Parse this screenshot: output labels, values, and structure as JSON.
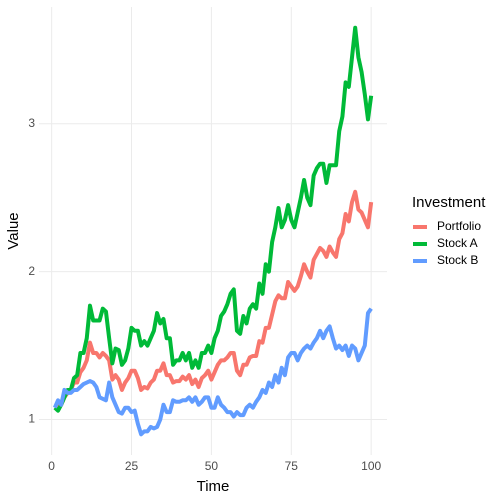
{
  "chart_data": {
    "type": "line",
    "x_label": "Time",
    "y_label": "Value",
    "legend_title": "Investment",
    "x": [
      1,
      2,
      3,
      4,
      5,
      6,
      7,
      8,
      9,
      10,
      11,
      12,
      13,
      14,
      15,
      16,
      17,
      18,
      19,
      20,
      21,
      22,
      23,
      24,
      25,
      26,
      27,
      28,
      29,
      30,
      31,
      32,
      33,
      34,
      35,
      36,
      37,
      38,
      39,
      40,
      41,
      42,
      43,
      44,
      45,
      46,
      47,
      48,
      49,
      50,
      51,
      52,
      53,
      54,
      55,
      56,
      57,
      58,
      59,
      60,
      61,
      62,
      63,
      64,
      65,
      66,
      67,
      68,
      69,
      70,
      71,
      72,
      73,
      74,
      75,
      76,
      77,
      78,
      79,
      80,
      81,
      82,
      83,
      84,
      85,
      86,
      87,
      88,
      89,
      90,
      91,
      92,
      93,
      94,
      95,
      96,
      97,
      98,
      99,
      100
    ],
    "series": [
      {
        "name": "Portfolio",
        "color": "#F8766D",
        "values": [
          1.08,
          1.1,
          1.1,
          1.15,
          1.18,
          1.2,
          1.25,
          1.25,
          1.32,
          1.35,
          1.4,
          1.52,
          1.45,
          1.45,
          1.42,
          1.45,
          1.43,
          1.4,
          1.27,
          1.3,
          1.27,
          1.2,
          1.25,
          1.28,
          1.33,
          1.33,
          1.28,
          1.2,
          1.22,
          1.21,
          1.25,
          1.27,
          1.33,
          1.33,
          1.38,
          1.3,
          1.3,
          1.25,
          1.26,
          1.26,
          1.29,
          1.27,
          1.3,
          1.24,
          1.27,
          1.22,
          1.28,
          1.3,
          1.33,
          1.27,
          1.32,
          1.37,
          1.4,
          1.4,
          1.42,
          1.45,
          1.45,
          1.33,
          1.3,
          1.37,
          1.37,
          1.42,
          1.43,
          1.43,
          1.53,
          1.52,
          1.62,
          1.62,
          1.71,
          1.8,
          1.84,
          1.82,
          1.82,
          1.93,
          1.9,
          1.87,
          1.9,
          1.97,
          2.05,
          2.0,
          1.96,
          2.08,
          2.12,
          2.16,
          2.14,
          2.1,
          2.17,
          2.13,
          2.1,
          2.22,
          2.26,
          2.39,
          2.34,
          2.47,
          2.54,
          2.42,
          2.4,
          2.35,
          2.3,
          2.47
        ]
      },
      {
        "name": "Stock A",
        "color": "#00BA38",
        "values": [
          1.08,
          1.06,
          1.1,
          1.15,
          1.2,
          1.2,
          1.28,
          1.3,
          1.45,
          1.45,
          1.55,
          1.77,
          1.67,
          1.67,
          1.67,
          1.75,
          1.73,
          1.55,
          1.38,
          1.48,
          1.47,
          1.37,
          1.4,
          1.48,
          1.62,
          1.6,
          1.6,
          1.5,
          1.53,
          1.5,
          1.55,
          1.6,
          1.72,
          1.65,
          1.68,
          1.55,
          1.55,
          1.37,
          1.4,
          1.4,
          1.45,
          1.4,
          1.45,
          1.35,
          1.4,
          1.35,
          1.45,
          1.45,
          1.5,
          1.45,
          1.55,
          1.6,
          1.7,
          1.73,
          1.78,
          1.85,
          1.88,
          1.6,
          1.58,
          1.7,
          1.65,
          1.75,
          1.78,
          1.75,
          1.92,
          1.85,
          2.05,
          2.0,
          2.2,
          2.3,
          2.43,
          2.3,
          2.35,
          2.45,
          2.35,
          2.3,
          2.4,
          2.5,
          2.62,
          2.5,
          2.45,
          2.65,
          2.7,
          2.73,
          2.73,
          2.6,
          2.72,
          2.72,
          2.72,
          2.95,
          3.05,
          3.28,
          3.25,
          3.45,
          3.65,
          3.45,
          3.35,
          3.2,
          3.03,
          3.19
        ]
      },
      {
        "name": "Stock B",
        "color": "#619CFF",
        "values": [
          1.08,
          1.13,
          1.1,
          1.2,
          1.18,
          1.18,
          1.2,
          1.2,
          1.22,
          1.24,
          1.25,
          1.26,
          1.25,
          1.22,
          1.15,
          1.14,
          1.13,
          1.25,
          1.15,
          1.1,
          1.05,
          1.04,
          1.08,
          1.08,
          1.05,
          1.06,
          0.97,
          0.9,
          0.92,
          0.92,
          0.95,
          0.94,
          0.95,
          1.0,
          1.1,
          1.05,
          1.05,
          1.13,
          1.12,
          1.12,
          1.13,
          1.13,
          1.15,
          1.12,
          1.15,
          1.1,
          1.12,
          1.15,
          1.15,
          1.08,
          1.08,
          1.15,
          1.1,
          1.08,
          1.05,
          1.05,
          1.02,
          1.05,
          1.03,
          1.03,
          1.08,
          1.1,
          1.08,
          1.12,
          1.15,
          1.2,
          1.18,
          1.25,
          1.22,
          1.3,
          1.25,
          1.35,
          1.3,
          1.42,
          1.45,
          1.45,
          1.4,
          1.45,
          1.48,
          1.5,
          1.48,
          1.52,
          1.55,
          1.6,
          1.55,
          1.6,
          1.63,
          1.55,
          1.48,
          1.5,
          1.47,
          1.5,
          1.43,
          1.5,
          1.48,
          1.4,
          1.45,
          1.5,
          1.72,
          1.75
        ]
      }
    ],
    "xlim": [
      -3.95,
      104.95
    ],
    "xticks": [
      0,
      25,
      50,
      75,
      100
    ],
    "ylim": [
      0.76,
      3.79
    ],
    "yticks": [
      1,
      2,
      3
    ],
    "grid": true,
    "legend": "right"
  }
}
